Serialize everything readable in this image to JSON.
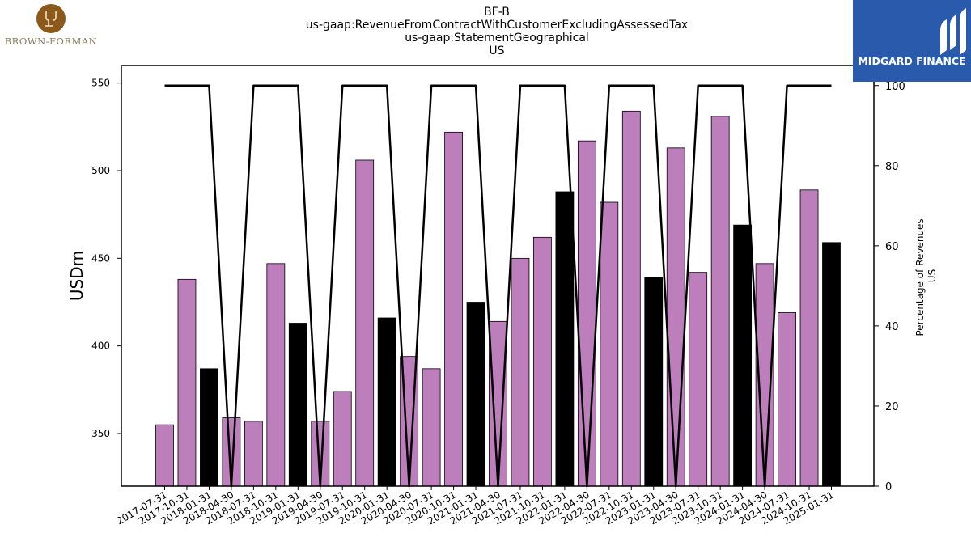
{
  "header": {
    "title_lines": [
      "BF-B",
      "us-gaap:RevenueFromContractWithCustomerExcludingAssessedTax",
      "us-gaap:StatementGeographical",
      "US"
    ]
  },
  "logos": {
    "left_text": "BROWN-FORMAN",
    "right_text": "MIDGARD FINANCE",
    "left_color": "#8B5A1B",
    "right_color": "#2A5AAB"
  },
  "chart_data": {
    "type": "bar",
    "title": "BF-B us-gaap:RevenueFromContractWithCustomerExcludingAssessedTax us-gaap:StatementGeographical US",
    "categories": [
      "2017-07-31",
      "2017-10-31",
      "2018-01-31",
      "2018-04-30",
      "2018-07-31",
      "2018-10-31",
      "2019-01-31",
      "2019-04-30",
      "2019-07-31",
      "2019-10-31",
      "2020-01-31",
      "2020-04-30",
      "2020-07-31",
      "2020-10-31",
      "2021-01-31",
      "2021-04-30",
      "2021-07-31",
      "2021-10-31",
      "2022-01-31",
      "2022-04-30",
      "2022-07-31",
      "2022-10-31",
      "2023-01-31",
      "2023-04-30",
      "2023-07-31",
      "2023-10-31",
      "2024-01-31",
      "2024-04-30",
      "2024-07-31",
      "2024-10-31",
      "2025-01-31"
    ],
    "series": [
      {
        "values": [
          355,
          438,
          387,
          359,
          357,
          447,
          413,
          357,
          374,
          506,
          416,
          394,
          387,
          522,
          425,
          414,
          450,
          462,
          488,
          517,
          482,
          534,
          439,
          513,
          442,
          531,
          469,
          447,
          419,
          489,
          459
        ],
        "colors": [
          "#BC7FBC",
          "#BC7FBC",
          "#000000",
          "#BC7FBC",
          "#BC7FBC",
          "#BC7FBC",
          "#000000",
          "#BC7FBC",
          "#BC7FBC",
          "#BC7FBC",
          "#000000",
          "#BC7FBC",
          "#BC7FBC",
          "#BC7FBC",
          "#000000",
          "#BC7FBC",
          "#BC7FBC",
          "#BC7FBC",
          "#000000",
          "#BC7FBC",
          "#BC7FBC",
          "#BC7FBC",
          "#000000",
          "#BC7FBC",
          "#BC7FBC",
          "#BC7FBC",
          "#000000",
          "#BC7FBC",
          "#BC7FBC",
          "#BC7FBC",
          "#000000"
        ]
      },
      {
        "values": [
          100,
          100,
          100,
          0,
          100,
          100,
          100,
          0,
          100,
          100,
          100,
          0,
          100,
          100,
          100,
          0,
          100,
          100,
          100,
          0,
          100,
          100,
          100,
          0,
          100,
          100,
          100,
          0,
          100,
          100,
          100
        ],
        "color": "#000000"
      }
    ],
    "ylabel": "USDm",
    "y2label_lines": [
      "Percentage of Revenues",
      "US"
    ],
    "ylim": [
      320,
      560
    ],
    "y2lim": [
      0,
      105
    ],
    "yticks": [
      350,
      400,
      450,
      500,
      550
    ],
    "y2ticks": [
      0,
      20,
      40,
      60,
      80,
      100
    ],
    "grid": false
  }
}
